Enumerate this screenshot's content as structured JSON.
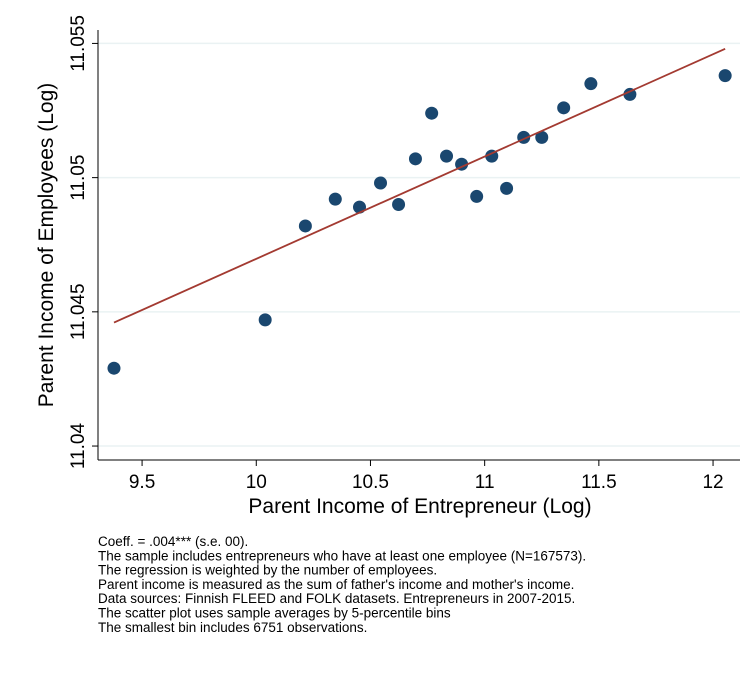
{
  "chart_data": {
    "type": "scatter",
    "x_label": "Parent Income of Entrepreneur (Log)",
    "y_label": "Parent Income of Employees (Log)",
    "x": [
      9.377,
      10.039,
      10.215,
      10.346,
      10.452,
      10.544,
      10.623,
      10.697,
      10.768,
      10.833,
      10.899,
      10.965,
      11.031,
      11.096,
      11.171,
      11.25,
      11.346,
      11.465,
      11.636,
      12.053
    ],
    "series": [
      {
        "color": "#1a476f",
        "values": [
          11.0429,
          11.0447,
          11.0482,
          11.0492,
          11.0489,
          11.0498,
          11.049,
          11.0507,
          11.0524,
          11.0508,
          11.0505,
          11.0493,
          11.0508,
          11.0496,
          11.0515,
          11.0515,
          11.0526,
          11.0535,
          11.0531,
          11.0538
        ]
      }
    ],
    "fit": {
      "color": "#a33a31",
      "x": [
        9.377,
        12.053
      ],
      "y": [
        11.0446,
        11.0548
      ]
    },
    "xlim": [
      9.307,
      12.118
    ],
    "ylim": [
      11.03948,
      11.0555
    ],
    "xticks": [
      9.5,
      10,
      10.5,
      11,
      11.5,
      12
    ],
    "yticks": [
      11.04,
      11.045,
      11.05,
      11.055
    ],
    "grid": true,
    "notes": [
      "Coeff. = .004*** (s.e. 00).",
      "The sample includes entrepreneurs who have at least one employee (N=167573).",
      "The regression is weighted by the number of employees.",
      "Parent income is measured as the sum of father's income and mother's income.",
      "Data sources: Finnish FLEED and FOLK datasets. Entrepreneurs in 2007-2015.",
      "The scatter plot uses sample averages by 5-percentile bins",
      "The smallest bin includes 6751 observations."
    ]
  }
}
